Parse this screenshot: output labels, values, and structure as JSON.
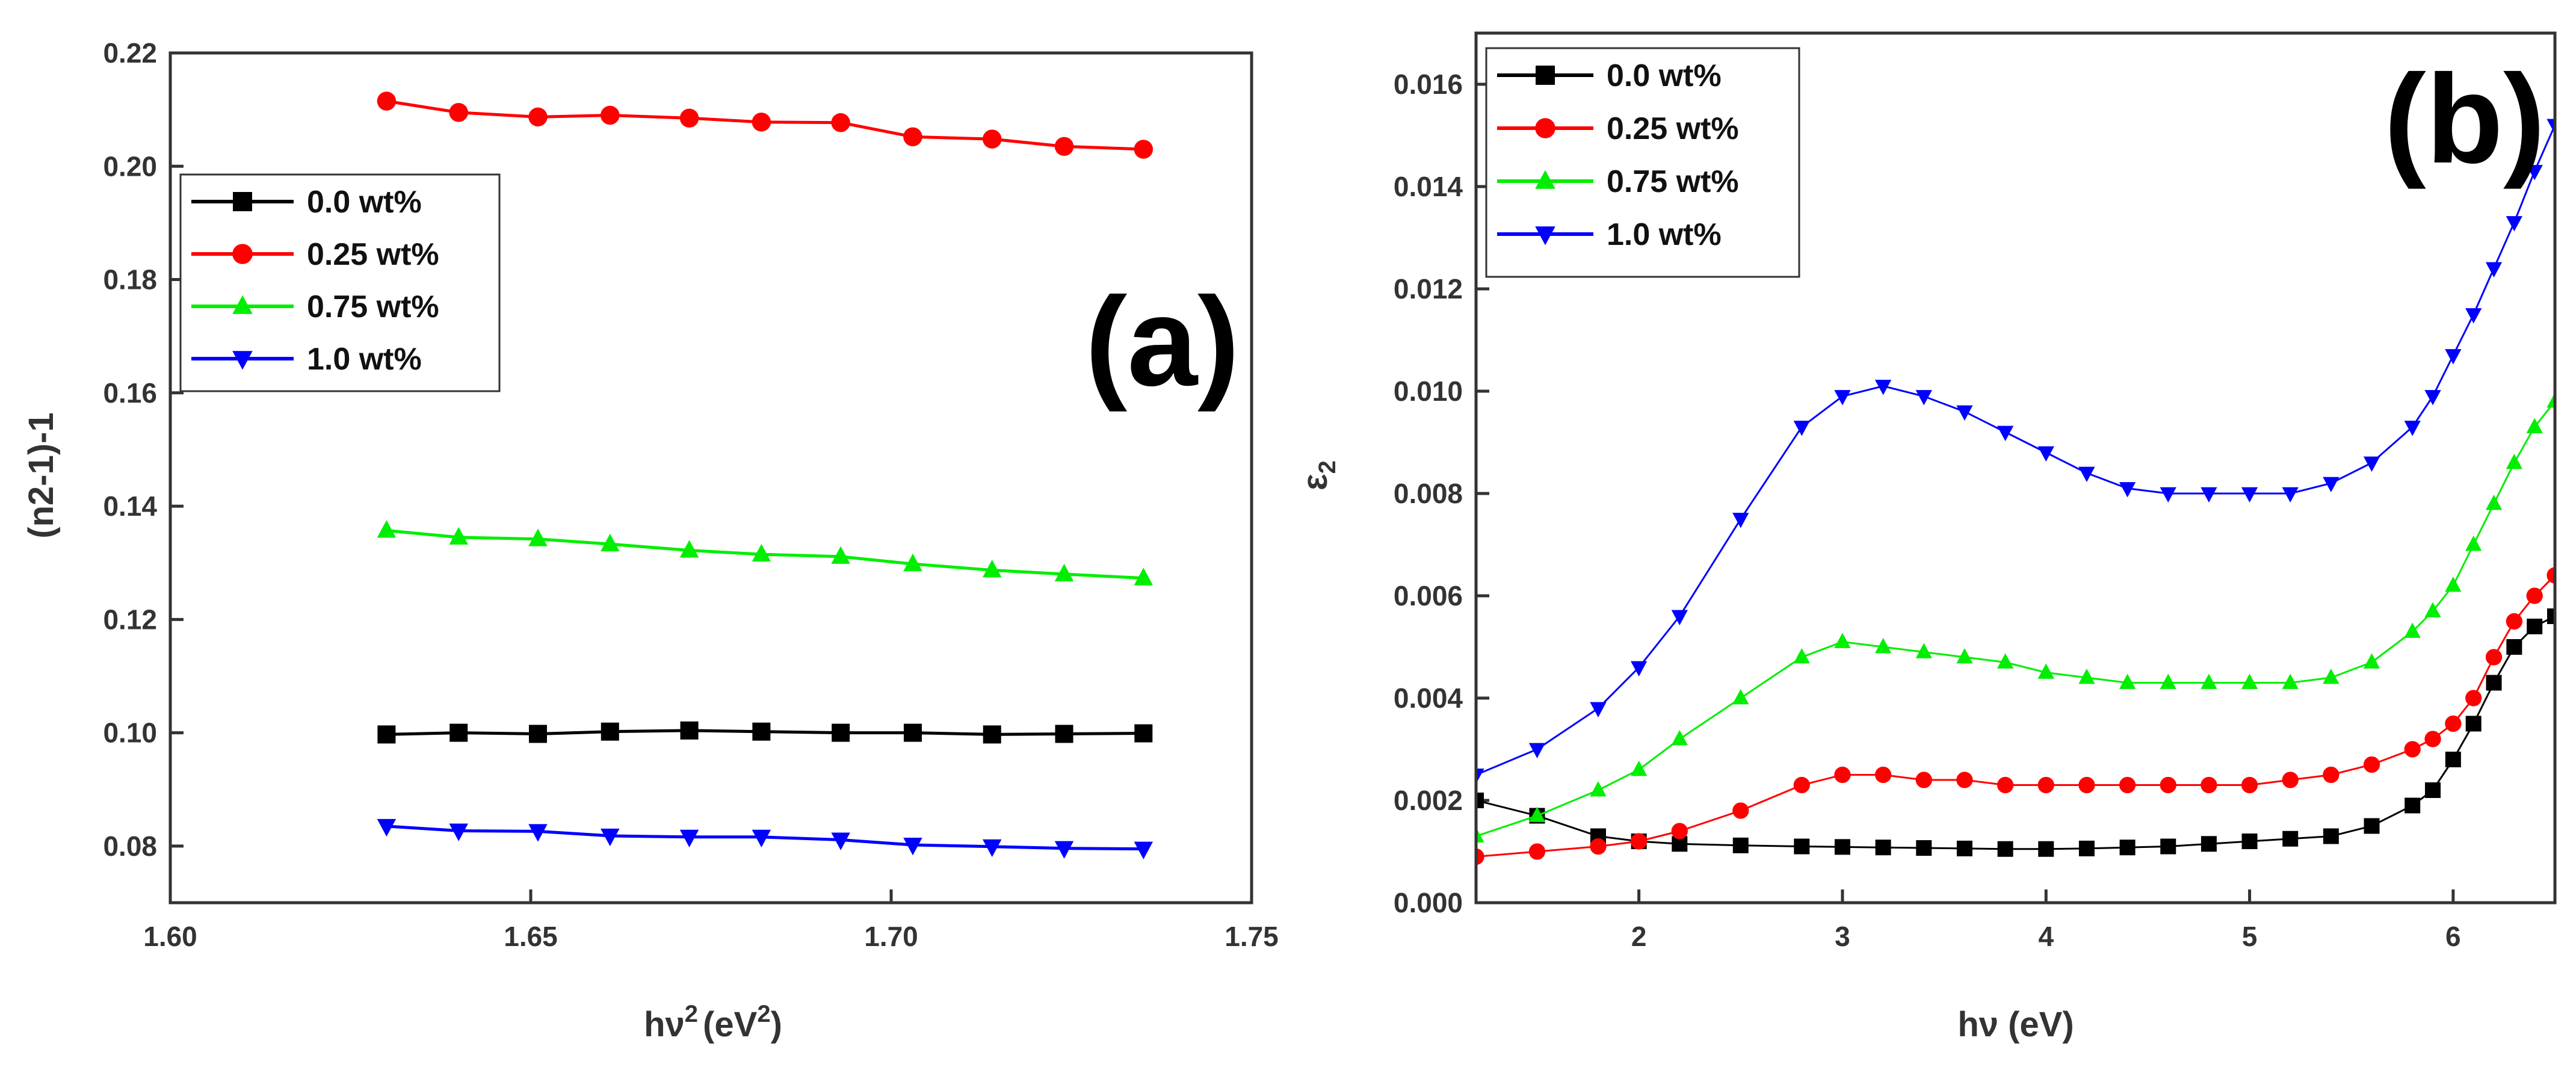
{
  "chart_data": [
    {
      "type": "line",
      "panel_label": "(a)",
      "xlabel": "hν",
      "xlabel_sup": "2",
      "xlabel_units": "(eV",
      "xlabel_units_sup": "2",
      "xlabel_close": ")",
      "ylabel": "(n2-1)-1",
      "xlim": [
        1.6,
        1.75
      ],
      "ylim": [
        0.07,
        0.22
      ],
      "xticks": [
        1.6,
        1.65,
        1.7,
        1.75
      ],
      "yticks": [
        0.08,
        0.1,
        0.12,
        0.14,
        0.16,
        0.18,
        0.2,
        0.22
      ],
      "x_tick_labels": [
        "1.60",
        "1.65",
        "1.70",
        "1.75"
      ],
      "y_tick_labels": [
        "0.08",
        "0.10",
        "0.12",
        "0.14",
        "0.16",
        "0.18",
        "0.20",
        "0.22"
      ],
      "legend_position": "upper-left",
      "x": [
        1.63,
        1.64,
        1.651,
        1.661,
        1.672,
        1.682,
        1.693,
        1.703,
        1.714,
        1.724,
        1.735
      ],
      "series": [
        {
          "name": "0.0 wt%",
          "color": "#000000",
          "marker": "square",
          "values": [
            0.0997,
            0.1,
            0.0998,
            0.1002,
            0.1004,
            0.1002,
            0.1,
            0.1,
            0.0997,
            0.0998,
            0.0999
          ]
        },
        {
          "name": "0.25 wt%",
          "color": "#ff0000",
          "marker": "circle",
          "values": [
            0.2115,
            0.2095,
            0.2087,
            0.209,
            0.2085,
            0.2078,
            0.2077,
            0.2052,
            0.2048,
            0.2035,
            0.203
          ]
        },
        {
          "name": "0.75 wt%",
          "color": "#00ee00",
          "marker": "triangle-up",
          "values": [
            0.1357,
            0.1345,
            0.1342,
            0.1333,
            0.1322,
            0.1315,
            0.1311,
            0.1298,
            0.1287,
            0.128,
            0.1273
          ]
        },
        {
          "name": "1.0 wt%",
          "color": "#0000ff",
          "marker": "triangle-down",
          "values": [
            0.0835,
            0.0827,
            0.0826,
            0.0818,
            0.0816,
            0.0816,
            0.0811,
            0.0802,
            0.0799,
            0.0796,
            0.0795
          ]
        }
      ]
    },
    {
      "type": "line",
      "panel_label": "(b)",
      "xlabel": "hν (eV)",
      "ylabel": "ε",
      "ylabel_sub": "2",
      "xlim": [
        1.2,
        6.5
      ],
      "ylim": [
        0.0,
        0.017
      ],
      "xticks": [
        2,
        3,
        4,
        5,
        6
      ],
      "yticks": [
        0.0,
        0.002,
        0.004,
        0.006,
        0.008,
        0.01,
        0.012,
        0.014,
        0.016
      ],
      "x_tick_labels": [
        "2",
        "3",
        "4",
        "5",
        "6"
      ],
      "y_tick_labels": [
        "0.000",
        "0.002",
        "0.004",
        "0.006",
        "0.008",
        "0.010",
        "0.012",
        "0.014",
        "0.016"
      ],
      "legend_position": "upper-left",
      "x": [
        1.2,
        1.5,
        1.8,
        2.0,
        2.2,
        2.5,
        2.8,
        3.0,
        3.2,
        3.4,
        3.6,
        3.8,
        4.0,
        4.2,
        4.4,
        4.6,
        4.8,
        5.0,
        5.2,
        5.4,
        5.6,
        5.8,
        5.9,
        6.0,
        6.1,
        6.2,
        6.3,
        6.4,
        6.5
      ],
      "series": [
        {
          "name": "0.0 wt%",
          "color": "#000000",
          "marker": "square",
          "values": [
            0.002,
            0.0017,
            0.0013,
            0.0012,
            0.00115,
            0.00112,
            0.0011,
            0.00109,
            0.00108,
            0.00107,
            0.00106,
            0.00105,
            0.00105,
            0.00106,
            0.00108,
            0.0011,
            0.00115,
            0.0012,
            0.00125,
            0.0013,
            0.0015,
            0.0019,
            0.0022,
            0.0028,
            0.0035,
            0.0043,
            0.005,
            0.0054,
            0.0056
          ]
        },
        {
          "name": "0.25 wt%",
          "color": "#ff0000",
          "marker": "circle",
          "values": [
            0.0009,
            0.001,
            0.0011,
            0.0012,
            0.0014,
            0.0018,
            0.0023,
            0.0025,
            0.0025,
            0.0024,
            0.0024,
            0.0023,
            0.0023,
            0.0023,
            0.0023,
            0.0023,
            0.0023,
            0.0023,
            0.0024,
            0.0025,
            0.0027,
            0.003,
            0.0032,
            0.0035,
            0.004,
            0.0048,
            0.0055,
            0.006,
            0.0064
          ]
        },
        {
          "name": "0.75 wt%",
          "color": "#00ee00",
          "marker": "triangle-up",
          "values": [
            0.0013,
            0.0017,
            0.0022,
            0.0026,
            0.0032,
            0.004,
            0.0048,
            0.0051,
            0.005,
            0.0049,
            0.0048,
            0.0047,
            0.0045,
            0.0044,
            0.0043,
            0.0043,
            0.0043,
            0.0043,
            0.0043,
            0.0044,
            0.0047,
            0.0053,
            0.0057,
            0.0062,
            0.007,
            0.0078,
            0.0086,
            0.0093,
            0.0098
          ]
        },
        {
          "name": "1.0 wt%",
          "color": "#0000ff",
          "marker": "triangle-down",
          "values": [
            0.0025,
            0.003,
            0.0038,
            0.0046,
            0.0056,
            0.0075,
            0.0093,
            0.0099,
            0.0101,
            0.0099,
            0.0096,
            0.0092,
            0.0088,
            0.0084,
            0.0081,
            0.008,
            0.008,
            0.008,
            0.008,
            0.0082,
            0.0086,
            0.0093,
            0.0099,
            0.0107,
            0.0115,
            0.0124,
            0.0133,
            0.0143,
            0.0152
          ]
        }
      ]
    }
  ]
}
